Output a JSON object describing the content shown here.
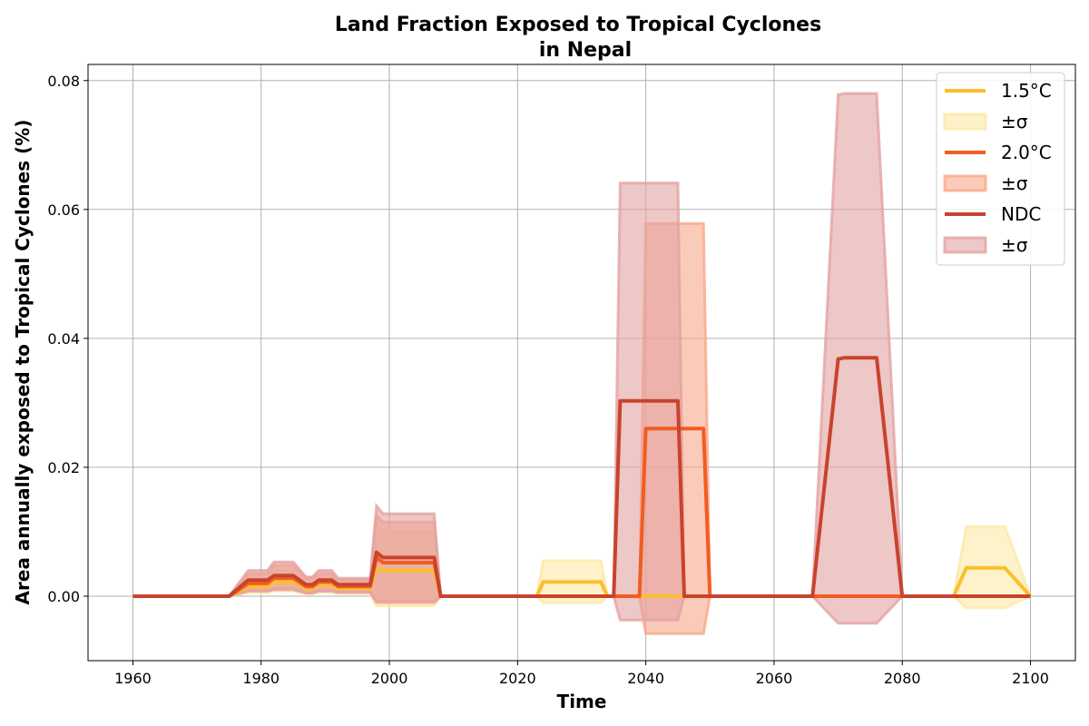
{
  "chart_data": {
    "type": "line",
    "title_line1": "Land Fraction Exposed to Tropical Cyclones",
    "title_line2": "in Nepal",
    "xlabel": "Time",
    "ylabel": "Area annually exposed to Tropical Cyclones (%)",
    "xlim": [
      1953,
      2107
    ],
    "ylim": [
      -0.01,
      0.0825
    ],
    "xticks": [
      1960,
      1980,
      2000,
      2020,
      2040,
      2060,
      2080,
      2100
    ],
    "yticks": [
      0.0,
      0.02,
      0.04,
      0.06,
      0.08
    ],
    "ytick_labels": [
      "0.00",
      "0.02",
      "0.04",
      "0.06",
      "0.08"
    ],
    "xtick_labels": [
      "1960",
      "1980",
      "2000",
      "2020",
      "2040",
      "2060",
      "2080",
      "2100"
    ],
    "grid": true,
    "legend_position": "top-right",
    "series": [
      {
        "name": "1.5°C",
        "band_label": "±σ",
        "color": "#fbbf2c",
        "band_color": "#fde9a8",
        "x": [
          1960,
          1975,
          1978,
          1981,
          1982,
          1985,
          1987,
          1988,
          1989,
          1991,
          1992,
          1997,
          1998,
          1999,
          2006,
          2007,
          2008,
          2023,
          2024,
          2033,
          2034,
          2088,
          2090,
          2096,
          2100
        ],
        "y": [
          0,
          0,
          0.0015,
          0.0015,
          0.0022,
          0.0022,
          0.0012,
          0.0012,
          0.0018,
          0.0018,
          0.0012,
          0.0012,
          0.0045,
          0.004,
          0.004,
          0.004,
          0,
          0,
          0.0022,
          0.0022,
          0,
          0,
          0.0044,
          0.0044,
          0
        ],
        "upper": [
          0,
          0,
          0.003,
          0.003,
          0.004,
          0.004,
          0.0025,
          0.0025,
          0.003,
          0.003,
          0.0022,
          0.0022,
          0.011,
          0.01,
          0.01,
          0.01,
          0,
          0,
          0.0055,
          0.0055,
          0,
          0,
          0.0108,
          0.0108,
          0
        ],
        "lower": [
          0,
          0,
          0.0005,
          0.0005,
          0.0008,
          0.0008,
          0.0003,
          0.0003,
          0.0006,
          0.0006,
          0.0004,
          0.0004,
          -0.0015,
          -0.0015,
          -0.0015,
          -0.0015,
          0,
          0,
          -0.001,
          -0.001,
          0,
          0,
          -0.0018,
          -0.0018,
          0
        ]
      },
      {
        "name": "2.0°C",
        "band_label": "±σ",
        "color": "#f25c22",
        "band_color": "#f9a98a",
        "x": [
          1960,
          1975,
          1978,
          1981,
          1982,
          1985,
          1987,
          1988,
          1989,
          1991,
          1992,
          1997,
          1998,
          1999,
          2006,
          2007,
          2008,
          2039,
          2040,
          2049,
          2050,
          2100
        ],
        "y": [
          0,
          0,
          0.002,
          0.002,
          0.0028,
          0.0028,
          0.0015,
          0.0015,
          0.0022,
          0.0022,
          0.0015,
          0.0015,
          0.006,
          0.0052,
          0.0052,
          0.0052,
          0,
          0,
          0.026,
          0.026,
          0,
          0
        ],
        "upper": [
          0,
          0,
          0.0035,
          0.0035,
          0.0048,
          0.0048,
          0.0028,
          0.0028,
          0.0035,
          0.0035,
          0.0025,
          0.0025,
          0.0125,
          0.0115,
          0.0115,
          0.0115,
          0,
          0,
          0.0578,
          0.0578,
          0,
          0
        ],
        "lower": [
          0,
          0,
          0.0008,
          0.0008,
          0.0012,
          0.0012,
          0.0005,
          0.0005,
          0.0008,
          0.0008,
          0.0006,
          0.0006,
          -0.001,
          -0.001,
          -0.001,
          -0.001,
          0,
          0,
          -0.0058,
          -0.0058,
          0,
          0
        ]
      },
      {
        "name": "NDC",
        "band_label": "±σ",
        "color": "#c8432e",
        "band_color": "#e3a2a2",
        "x": [
          1960,
          1975,
          1978,
          1981,
          1982,
          1985,
          1987,
          1988,
          1989,
          1991,
          1992,
          1997,
          1998,
          1999,
          2006,
          2007,
          2008,
          2035,
          2036,
          2044,
          2045,
          2046,
          2066,
          2070,
          2071,
          2075,
          2076,
          2080,
          2100
        ],
        "y": [
          0,
          0,
          0.0025,
          0.0025,
          0.0032,
          0.0032,
          0.0018,
          0.0018,
          0.0025,
          0.0025,
          0.0018,
          0.0018,
          0.0068,
          0.006,
          0.006,
          0.006,
          0,
          0,
          0.0303,
          0.0303,
          0.0303,
          0,
          0,
          0.0368,
          0.037,
          0.037,
          0.037,
          0,
          0
        ],
        "upper": [
          0,
          0,
          0.004,
          0.004,
          0.0053,
          0.0053,
          0.003,
          0.003,
          0.004,
          0.004,
          0.0028,
          0.0028,
          0.014,
          0.0128,
          0.0128,
          0.0128,
          0,
          0,
          0.0641,
          0.0641,
          0.0641,
          0,
          0,
          0.0778,
          0.078,
          0.078,
          0.078,
          0,
          0
        ],
        "lower": [
          0,
          0,
          0.0008,
          0.0008,
          0.001,
          0.001,
          0.0005,
          0.0005,
          0.0008,
          0.0008,
          0.0006,
          0.0006,
          -0.0008,
          -0.0008,
          -0.0008,
          -0.0008,
          0,
          0,
          -0.0037,
          -0.0037,
          -0.0037,
          0,
          0,
          -0.0042,
          -0.0042,
          -0.0042,
          -0.0042,
          0,
          0
        ]
      }
    ]
  }
}
